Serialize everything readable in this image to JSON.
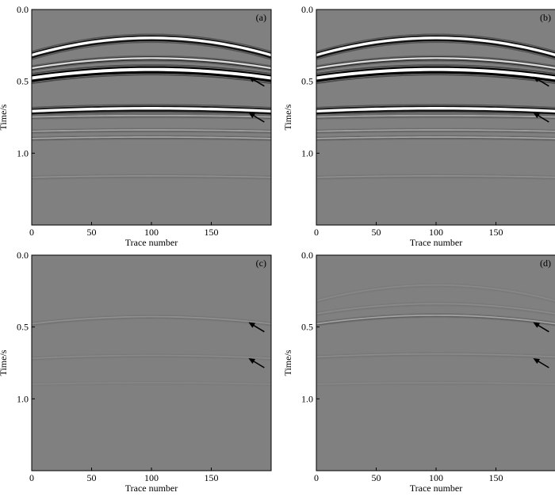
{
  "figure": {
    "description_free": true,
    "panels": [
      {
        "id": "a",
        "label": "(a)",
        "row": 0,
        "col": 0,
        "style": "strong"
      },
      {
        "id": "b",
        "label": "(b)",
        "row": 0,
        "col": 1,
        "style": "strong"
      },
      {
        "id": "c",
        "label": "(c)",
        "row": 1,
        "col": 0,
        "style": "faint"
      },
      {
        "id": "d",
        "label": "(d)",
        "row": 1,
        "col": 1,
        "style": "faintplus"
      }
    ]
  },
  "chart_data": [
    {
      "type": "heatmap",
      "panel": "(a)",
      "xlabel": "Trace number",
      "ylabel": "Time/s",
      "xlim": [
        0,
        200
      ],
      "ylim": [
        1.5,
        0.0
      ],
      "x_ticks": [
        0,
        50,
        100,
        150
      ],
      "x_tick_labels": [
        "0",
        "50",
        "100",
        "150"
      ],
      "y_ticks": [
        0.0,
        0.5,
        1.0
      ],
      "y_tick_labels": [
        "0.0",
        "0.5",
        "1.0"
      ],
      "arrows_at_time": [
        0.5,
        0.75
      ],
      "arrow_trace": 185,
      "events": [
        {
          "t_apex": 0.2,
          "t_edge": 0.32,
          "amp": 1.0
        },
        {
          "t_apex": 0.34,
          "t_edge": 0.41,
          "amp": 0.7
        },
        {
          "t_apex": 0.42,
          "t_edge": 0.48,
          "amp": 1.2
        },
        {
          "t_apex": 0.69,
          "t_edge": 0.71,
          "amp": 1.0
        },
        {
          "t_apex": 0.74,
          "t_edge": 0.75,
          "amp": 0.3
        },
        {
          "t_apex": 0.84,
          "t_edge": 0.85,
          "amp": 0.25
        },
        {
          "t_apex": 0.89,
          "t_edge": 0.9,
          "amp": 0.3
        },
        {
          "t_apex": 1.16,
          "t_edge": 1.17,
          "amp": 0.12
        }
      ]
    },
    {
      "type": "heatmap",
      "panel": "(b)",
      "xlabel": "Trace number",
      "ylabel": "Time/s",
      "xlim": [
        0,
        200
      ],
      "ylim": [
        1.5,
        0.0
      ],
      "x_ticks": [
        0,
        50,
        100,
        150
      ],
      "x_tick_labels": [
        "0",
        "50",
        "100",
        "150"
      ],
      "y_ticks": [
        0.0,
        0.5,
        1.0
      ],
      "y_tick_labels": [
        "0.0",
        "0.5",
        "1.0"
      ],
      "arrows_at_time": [
        0.5,
        0.75
      ],
      "arrow_trace": 185,
      "events": [
        {
          "t_apex": 0.2,
          "t_edge": 0.32,
          "amp": 1.0
        },
        {
          "t_apex": 0.34,
          "t_edge": 0.41,
          "amp": 0.7
        },
        {
          "t_apex": 0.42,
          "t_edge": 0.48,
          "amp": 1.2
        },
        {
          "t_apex": 0.69,
          "t_edge": 0.71,
          "amp": 1.0
        },
        {
          "t_apex": 0.74,
          "t_edge": 0.75,
          "amp": 0.3
        },
        {
          "t_apex": 0.84,
          "t_edge": 0.85,
          "amp": 0.25
        },
        {
          "t_apex": 0.89,
          "t_edge": 0.9,
          "amp": 0.3
        },
        {
          "t_apex": 1.16,
          "t_edge": 1.17,
          "amp": 0.12
        }
      ]
    },
    {
      "type": "heatmap",
      "panel": "(c)",
      "xlabel": "Trace number",
      "ylabel": "Time/s",
      "xlim": [
        0,
        200
      ],
      "ylim": [
        1.5,
        0.0
      ],
      "x_ticks": [
        0,
        50,
        100,
        150
      ],
      "x_tick_labels": [
        "0",
        "50",
        "100",
        "150"
      ],
      "y_ticks": [
        0.0,
        0.5,
        1.0
      ],
      "y_tick_labels": [
        "0.0",
        "0.5",
        "1.0"
      ],
      "arrows_at_time": [
        0.5,
        0.75
      ],
      "arrow_trace": 185,
      "events": [
        {
          "t_apex": 0.43,
          "t_edge": 0.48,
          "amp": 0.12
        },
        {
          "t_apex": 0.7,
          "t_edge": 0.72,
          "amp": 0.07
        },
        {
          "t_apex": 0.89,
          "t_edge": 0.9,
          "amp": 0.04
        }
      ]
    },
    {
      "type": "heatmap",
      "panel": "(d)",
      "xlabel": "Trace number",
      "ylabel": "Time/s",
      "xlim": [
        0,
        200
      ],
      "ylim": [
        1.5,
        0.0
      ],
      "x_ticks": [
        0,
        50,
        100,
        150
      ],
      "x_tick_labels": [
        "0",
        "50",
        "100",
        "150"
      ],
      "y_ticks": [
        0.0,
        0.5,
        1.0
      ],
      "y_tick_labels": [
        "0.0",
        "0.5",
        "1.0"
      ],
      "arrows_at_time": [
        0.5,
        0.75
      ],
      "arrow_trace": 185,
      "events": [
        {
          "t_apex": 0.21,
          "t_edge": 0.32,
          "amp": 0.06
        },
        {
          "t_apex": 0.34,
          "t_edge": 0.41,
          "amp": 0.08
        },
        {
          "t_apex": 0.42,
          "t_edge": 0.48,
          "amp": 0.28
        },
        {
          "t_apex": 0.69,
          "t_edge": 0.71,
          "amp": 0.08
        },
        {
          "t_apex": 0.89,
          "t_edge": 0.9,
          "amp": 0.05
        }
      ]
    }
  ],
  "colors": {
    "background_gray": "#808080",
    "axis": "#000000",
    "peak": "#ffffff",
    "trough": "#000000"
  }
}
